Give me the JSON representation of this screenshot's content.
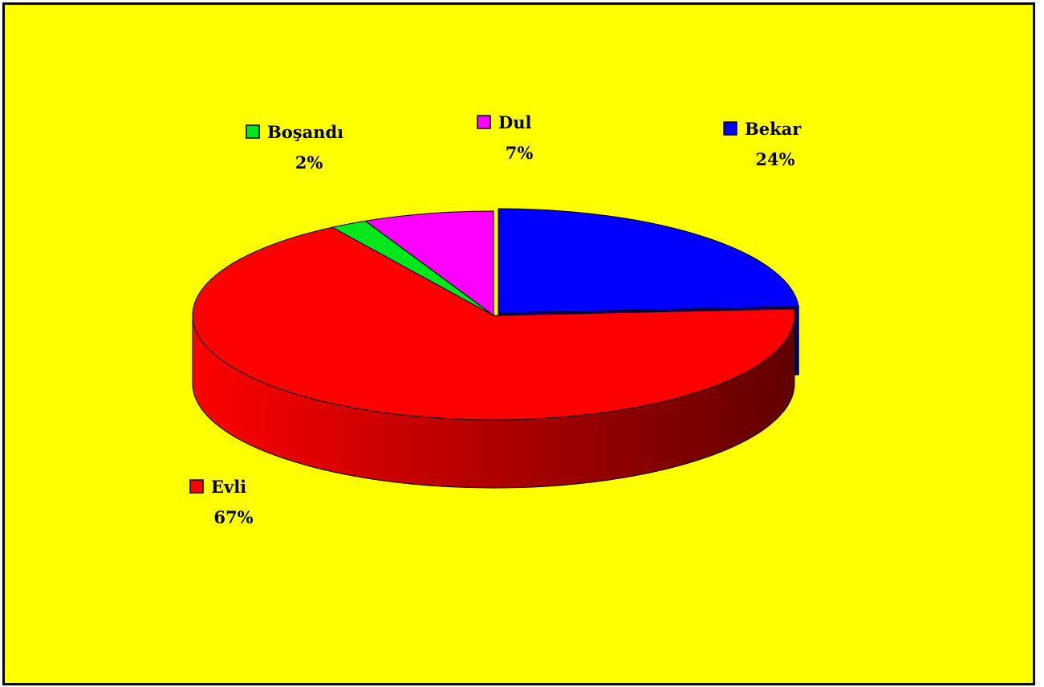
{
  "colors": {
    "background": "#ffff00",
    "border": "#000000"
  },
  "chart_data": {
    "type": "pie",
    "title": "",
    "slices": [
      {
        "name": "Bekar",
        "value": 24,
        "label": "24%",
        "color": "#0000ff",
        "dark": "#00007a",
        "exploded": true
      },
      {
        "name": "Evli",
        "value": 67,
        "label": "67%",
        "color": "#ff0000",
        "dark": "#600000",
        "exploded": false
      },
      {
        "name": "Boşandı",
        "value": 2,
        "label": "2%",
        "color": "#00e81c",
        "dark": "#006a0c",
        "exploded": false
      },
      {
        "name": "Dul",
        "value": 7,
        "label": "7%",
        "color": "#ff00ff",
        "dark": "#7a007a",
        "exploded": false
      }
    ],
    "legend": "labels beside slices"
  }
}
